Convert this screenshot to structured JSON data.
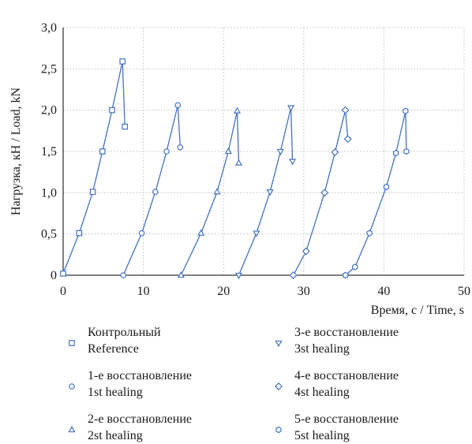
{
  "chart_data": {
    "type": "line",
    "title": "",
    "xlabel": "Время, с / Time, s",
    "ylabel": "Нагрузка, кН / Load, kN",
    "xlim": [
      0,
      50
    ],
    "ylim": [
      0,
      3
    ],
    "x_ticks": [
      0,
      10,
      20,
      30,
      40,
      50
    ],
    "y_ticks": [
      0,
      0.5,
      1.0,
      1.5,
      2.0,
      2.5,
      3.0
    ],
    "x_tick_labels": [
      "0",
      "10",
      "20",
      "30",
      "40",
      "50"
    ],
    "y_tick_labels": [
      "0",
      "0,5",
      "1,0",
      "1,5",
      "2,0",
      "2,5",
      "3,0"
    ],
    "grid": true,
    "legend_position": "bottom",
    "color": "#4472c4",
    "series": [
      {
        "name_line1": "Контрольный",
        "name_line2": "Reference",
        "marker": "square",
        "x": [
          0,
          2.0,
          3.7,
          4.9,
          6.1,
          7.4,
          7.7
        ],
        "y": [
          0.02,
          0.51,
          1.01,
          1.5,
          2.0,
          2.59,
          1.8
        ]
      },
      {
        "name_line1": "1-е восстановление",
        "name_line2": "1st healing",
        "marker": "circle",
        "x": [
          7.5,
          9.8,
          11.5,
          12.9,
          14.3,
          14.6
        ],
        "y": [
          0.0,
          0.51,
          1.01,
          1.5,
          2.06,
          1.55
        ]
      },
      {
        "name_line1": "2-е восстановление",
        "name_line2": "2st healing",
        "marker": "triangle",
        "x": [
          14.7,
          17.2,
          19.2,
          20.6,
          21.7,
          21.9
        ],
        "y": [
          0.0,
          0.51,
          1.01,
          1.5,
          1.99,
          1.36
        ]
      },
      {
        "name_line1": "3-е восстановление",
        "name_line2": "3st healing",
        "marker": "triangle-down",
        "x": [
          21.9,
          24.1,
          25.8,
          27.1,
          28.4,
          28.6
        ],
        "y": [
          0.0,
          0.51,
          1.01,
          1.5,
          2.03,
          1.38
        ]
      },
      {
        "name_line1": "4-е восстановление",
        "name_line2": "4st healing",
        "marker": "diamond",
        "x": [
          28.7,
          30.3,
          32.6,
          33.9,
          35.2,
          35.5
        ],
        "y": [
          0.0,
          0.29,
          1.0,
          1.49,
          2.0,
          1.65
        ]
      },
      {
        "name_line1": "5-е восстановление",
        "name_line2": "5st healing",
        "marker": "hexagon",
        "x": [
          35.2,
          36.4,
          38.2,
          40.3,
          41.5,
          42.7,
          42.8
        ],
        "y": [
          0.0,
          0.1,
          0.51,
          1.07,
          1.48,
          1.99,
          1.5
        ]
      }
    ]
  }
}
